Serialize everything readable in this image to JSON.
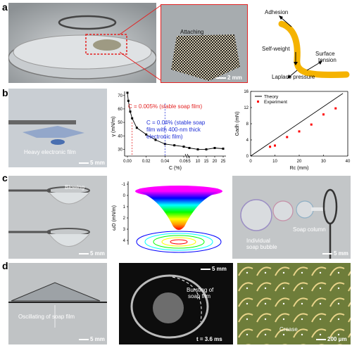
{
  "panels": {
    "a": {
      "letter": "a",
      "zoom_label": "Attaching",
      "scale_bar": "2 mm",
      "diagram_labels": {
        "adhesion": "Adhesion",
        "self_weight": "Self-weight",
        "surface_tension_1": "Surface",
        "surface_tension_2": "tension",
        "laplace": "Laplace pressure"
      }
    },
    "b": {
      "letter": "b",
      "photo_label": "Heavy electronic film",
      "scale_bar": "5 mm",
      "annot_red": "C = 0.005% (stable soap film)",
      "annot_blue_1": "C = 0.04% (stable soap",
      "annot_blue_2": "film with 400-nm thick",
      "annot_blue_3": "electronic film)"
    },
    "c": {
      "letter": "c",
      "blowing": "Blowing",
      "scale_bar_left": "5 mm",
      "soap_column": "Soap column",
      "individual_1": "Individual",
      "individual_2": "soap bubble",
      "scale_bar_right": "5 mm"
    },
    "d": {
      "letter": "d",
      "oscillating": "Oscillating of soap film",
      "scale_bar_left": "5 mm",
      "bursting_1": "Bursting of",
      "bursting_2": "soap film",
      "scale_bar_mid": "5 mm",
      "time_label": "t = 3.6 ms",
      "crease": "Crease",
      "scale_bar_right": "200 μm"
    }
  },
  "chart_data": [
    {
      "type": "line",
      "xlabel": "C (%)",
      "ylabel": "γ (mN/m)",
      "xticks": [
        "0.00",
        "0.02",
        "0.04",
        "0.06",
        "5",
        "10",
        "15",
        "20",
        "25"
      ],
      "yticks": [
        "30",
        "40",
        "50",
        "60",
        "70"
      ],
      "ylim": [
        25,
        73
      ],
      "series": [
        {
          "x": [
            0.0,
            0.001,
            0.003,
            0.005,
            0.01,
            0.02,
            0.03,
            0.04,
            0.05,
            0.06,
            5,
            10,
            15,
            20,
            25
          ],
          "y": [
            72,
            66,
            58,
            53,
            46,
            41,
            37,
            34,
            33,
            32,
            31,
            30,
            30,
            31,
            30.5
          ]
        }
      ],
      "color": "#000000"
    },
    {
      "type": "scatter",
      "xlabel": "Rc (mm)",
      "ylabel": "Gadh (mN)",
      "xticks": [
        "0",
        "10",
        "20",
        "30",
        "40"
      ],
      "yticks": [
        "0",
        "4",
        "8",
        "12",
        "16"
      ],
      "xlim": [
        0,
        40
      ],
      "ylim": [
        0,
        16
      ],
      "legend": [
        "Theory",
        "Experiment"
      ],
      "legend_position": "top-left",
      "series": [
        {
          "name": "Theory",
          "type": "line",
          "x": [
            0,
            38
          ],
          "y": [
            0,
            15.5
          ],
          "color": "#000000"
        },
        {
          "name": "Experiment",
          "type": "scatter",
          "x": [
            8,
            10,
            15,
            20,
            25,
            30,
            35
          ],
          "y": [
            2.3,
            2.6,
            4.7,
            6.1,
            7.8,
            10.3,
            11.8
          ],
          "color": "#ff0000"
        }
      ]
    },
    {
      "type": "surface",
      "zlabel": "ωD (mN/m)",
      "zticks": [
        "-1",
        "0",
        "1",
        "2",
        "3",
        "4"
      ],
      "colormap": [
        "#ff0000",
        "#ff9900",
        "#ffff00",
        "#00ff00",
        "#00ffff",
        "#0000ff",
        "#ff00ff"
      ]
    }
  ]
}
